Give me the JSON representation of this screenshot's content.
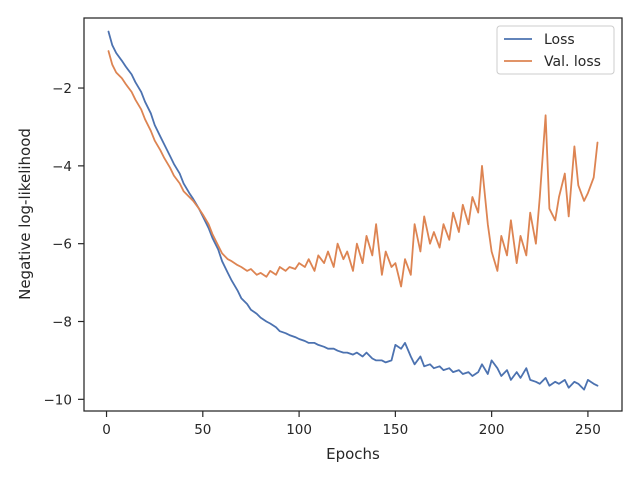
{
  "chart_data": {
    "type": "line",
    "title": "",
    "xlabel": "Epochs",
    "ylabel": "Negative log-likelihood",
    "xlim": [
      -11.7,
      267.7
    ],
    "ylim": [
      -10.3,
      -0.2
    ],
    "xticks": [
      0,
      50,
      100,
      150,
      200,
      250
    ],
    "yticks": [
      -10,
      -8,
      -6,
      -4,
      -2
    ],
    "grid": false,
    "legend_position": "top-right",
    "series": [
      {
        "name": "Loss",
        "color": "#4c72b0",
        "x": [
          1,
          3,
          5,
          8,
          10,
          13,
          15,
          18,
          20,
          23,
          25,
          28,
          30,
          33,
          35,
          38,
          40,
          43,
          45,
          48,
          50,
          53,
          55,
          58,
          60,
          63,
          65,
          68,
          70,
          73,
          75,
          78,
          80,
          83,
          85,
          88,
          90,
          93,
          95,
          98,
          100,
          103,
          105,
          108,
          110,
          113,
          115,
          118,
          120,
          123,
          125,
          128,
          130,
          133,
          135,
          138,
          140,
          143,
          145,
          148,
          150,
          153,
          155,
          158,
          160,
          163,
          165,
          168,
          170,
          173,
          175,
          178,
          180,
          183,
          185,
          188,
          190,
          193,
          195,
          198,
          200,
          203,
          205,
          208,
          210,
          213,
          215,
          218,
          220,
          223,
          225,
          228,
          230,
          233,
          235,
          238,
          240,
          243,
          245,
          248,
          250,
          253,
          255
        ],
        "y": [
          -0.55,
          -0.9,
          -1.1,
          -1.3,
          -1.45,
          -1.65,
          -1.85,
          -2.1,
          -2.35,
          -2.65,
          -2.95,
          -3.25,
          -3.45,
          -3.75,
          -3.95,
          -4.2,
          -4.45,
          -4.7,
          -4.85,
          -5.1,
          -5.3,
          -5.6,
          -5.85,
          -6.15,
          -6.45,
          -6.75,
          -6.95,
          -7.2,
          -7.4,
          -7.55,
          -7.7,
          -7.8,
          -7.9,
          -8.0,
          -8.05,
          -8.15,
          -8.25,
          -8.3,
          -8.35,
          -8.4,
          -8.45,
          -8.5,
          -8.55,
          -8.55,
          -8.6,
          -8.65,
          -8.7,
          -8.7,
          -8.75,
          -8.8,
          -8.8,
          -8.85,
          -8.8,
          -8.9,
          -8.8,
          -8.95,
          -9.0,
          -9.0,
          -9.05,
          -9.0,
          -8.6,
          -8.7,
          -8.55,
          -8.9,
          -9.1,
          -8.9,
          -9.15,
          -9.1,
          -9.2,
          -9.15,
          -9.25,
          -9.2,
          -9.3,
          -9.25,
          -9.35,
          -9.3,
          -9.4,
          -9.3,
          -9.1,
          -9.35,
          -9.0,
          -9.2,
          -9.4,
          -9.25,
          -9.5,
          -9.3,
          -9.45,
          -9.2,
          -9.5,
          -9.55,
          -9.6,
          -9.45,
          -9.65,
          -9.55,
          -9.6,
          -9.5,
          -9.7,
          -9.55,
          -9.6,
          -9.75,
          -9.5,
          -9.6,
          -9.65
        ]
      },
      {
        "name": "Val. loss",
        "color": "#dd8452",
        "x": [
          1,
          3,
          5,
          8,
          10,
          13,
          15,
          18,
          20,
          23,
          25,
          28,
          30,
          33,
          35,
          38,
          40,
          43,
          45,
          48,
          50,
          53,
          55,
          58,
          60,
          63,
          65,
          68,
          70,
          73,
          75,
          78,
          80,
          83,
          85,
          88,
          90,
          93,
          95,
          98,
          100,
          103,
          105,
          108,
          110,
          113,
          115,
          118,
          120,
          123,
          125,
          128,
          130,
          133,
          135,
          138,
          140,
          143,
          145,
          148,
          150,
          153,
          155,
          158,
          160,
          163,
          165,
          168,
          170,
          173,
          175,
          178,
          180,
          183,
          185,
          188,
          190,
          193,
          195,
          198,
          200,
          203,
          205,
          208,
          210,
          213,
          215,
          218,
          220,
          223,
          225,
          228,
          230,
          233,
          235,
          238,
          240,
          243,
          245,
          248,
          250,
          253,
          255
        ],
        "y": [
          -1.05,
          -1.4,
          -1.6,
          -1.75,
          -1.9,
          -2.1,
          -2.3,
          -2.55,
          -2.8,
          -3.1,
          -3.35,
          -3.6,
          -3.8,
          -4.05,
          -4.25,
          -4.45,
          -4.65,
          -4.8,
          -4.9,
          -5.1,
          -5.25,
          -5.5,
          -5.75,
          -6.05,
          -6.25,
          -6.4,
          -6.45,
          -6.55,
          -6.6,
          -6.7,
          -6.65,
          -6.8,
          -6.75,
          -6.85,
          -6.7,
          -6.8,
          -6.6,
          -6.7,
          -6.6,
          -6.65,
          -6.5,
          -6.6,
          -6.4,
          -6.7,
          -6.3,
          -6.5,
          -6.2,
          -6.6,
          -6.0,
          -6.4,
          -6.2,
          -6.7,
          -6.0,
          -6.5,
          -5.8,
          -6.3,
          -5.5,
          -6.8,
          -6.2,
          -6.6,
          -6.5,
          -7.1,
          -6.4,
          -6.8,
          -5.5,
          -6.2,
          -5.3,
          -6.0,
          -5.7,
          -6.1,
          -5.5,
          -5.9,
          -5.2,
          -5.7,
          -5.0,
          -5.5,
          -4.8,
          -5.2,
          -4.0,
          -5.5,
          -6.2,
          -6.7,
          -5.8,
          -6.3,
          -5.4,
          -6.5,
          -5.8,
          -6.3,
          -5.2,
          -6.0,
          -4.8,
          -2.7,
          -5.1,
          -5.4,
          -4.8,
          -4.2,
          -5.3,
          -3.5,
          -4.5,
          -4.9,
          -4.7,
          -4.3,
          -3.4
        ]
      }
    ]
  }
}
